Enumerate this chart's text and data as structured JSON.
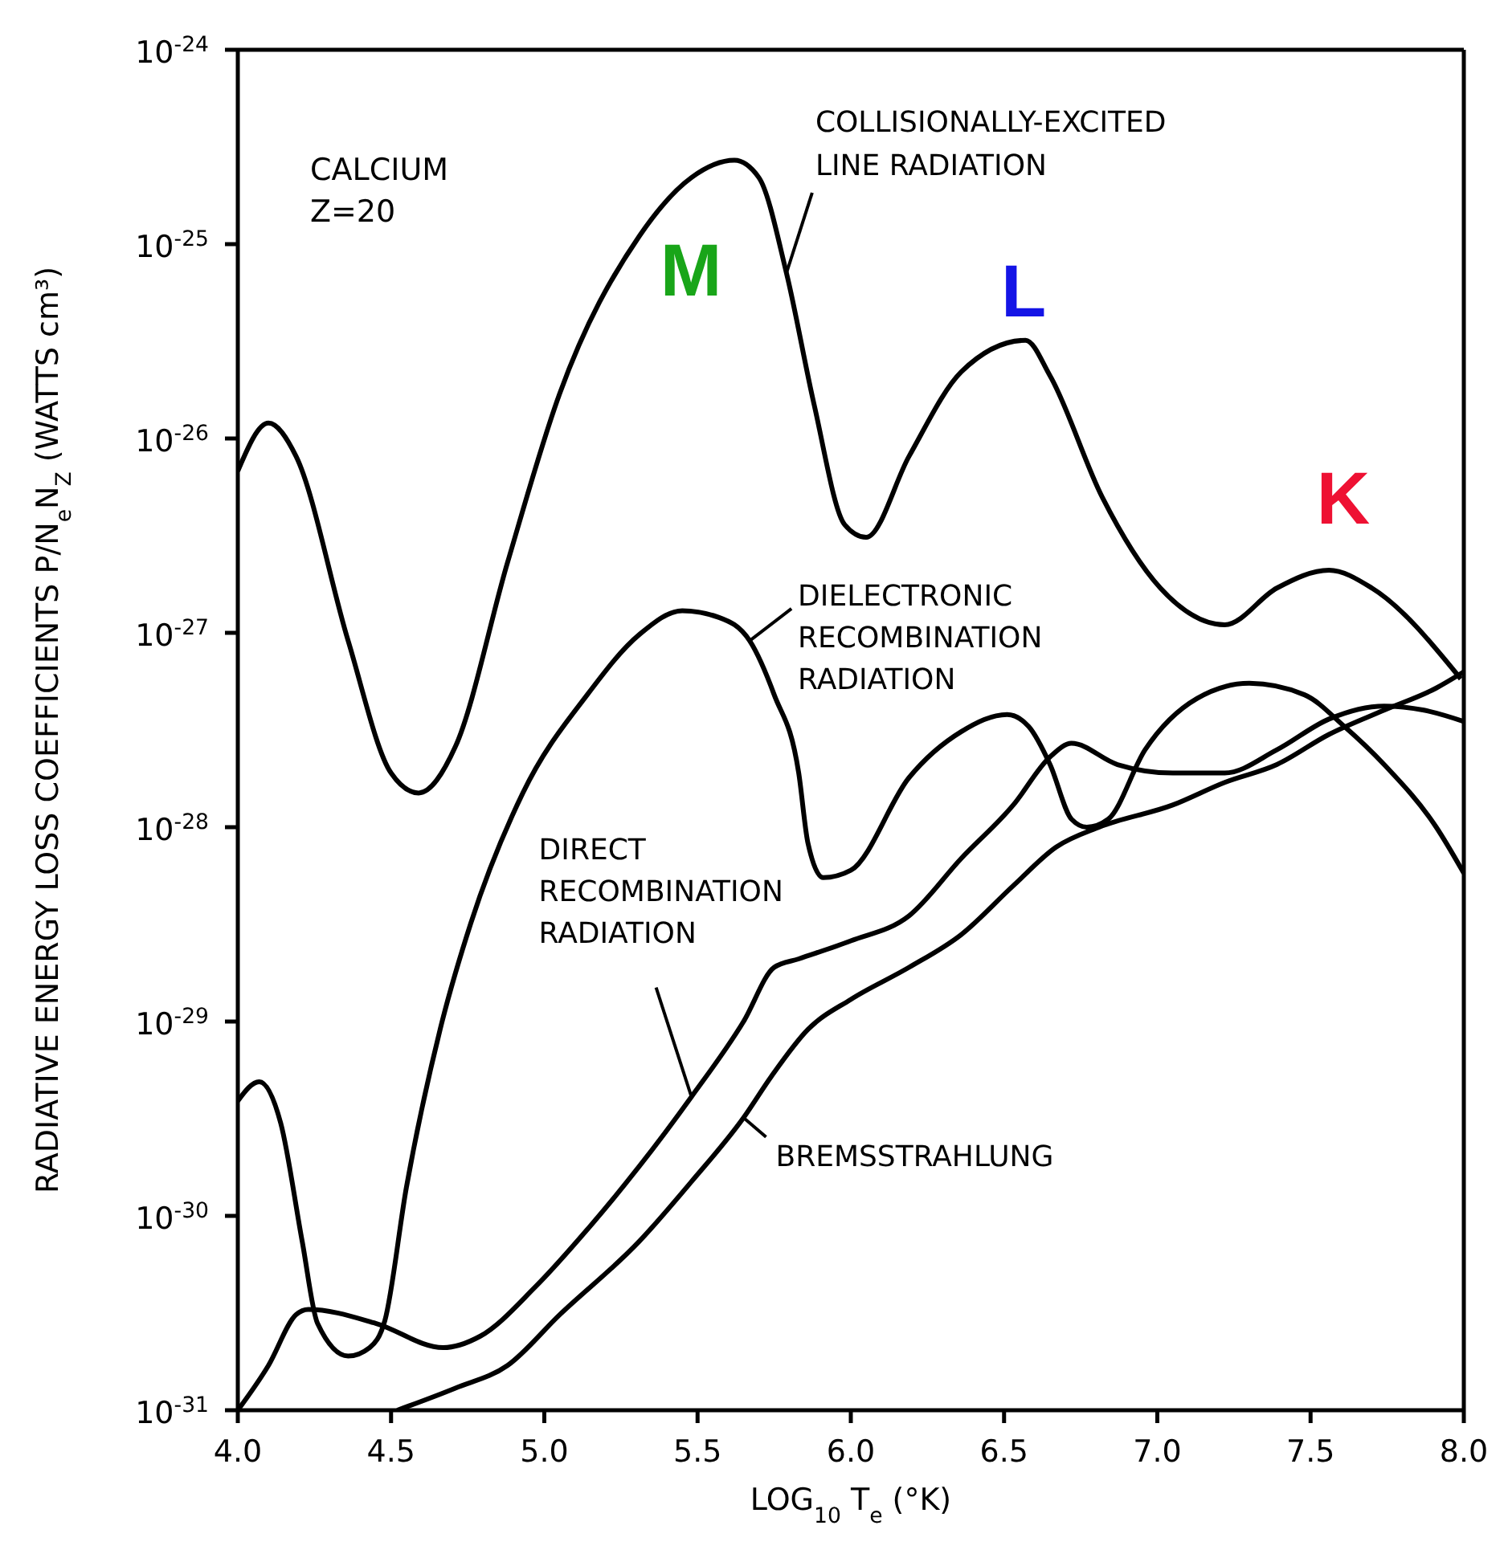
{
  "chart_data": {
    "type": "line",
    "xlabel": "LOG$_{10}$ T$_{e}$ (°K)",
    "ylabel": "RADIATIVE ENERGY LOSS COEFFICIENTS P/N$_{e}$N$_{Z}$ (WATTS cm³)",
    "log": "y",
    "grid": false,
    "marker": "none",
    "line_style": "solid",
    "xlim": [
      4,
      8
    ],
    "xticks": [
      {
        "value": 4,
        "label": "4.0"
      },
      {
        "value": 4.5,
        "label": "4.5"
      },
      {
        "value": 5,
        "label": "5.0"
      },
      {
        "value": 5.5,
        "label": "5.5"
      },
      {
        "value": 6,
        "label": "6.0"
      },
      {
        "value": 6.5,
        "label": "6.5"
      },
      {
        "value": 7,
        "label": "7.0"
      },
      {
        "value": 7.5,
        "label": "7.5"
      },
      {
        "value": 8,
        "label": "8.0"
      }
    ],
    "ylim": [
      1e-31,
      1e-24
    ],
    "yticks": [
      {
        "value": 1e-31,
        "label": "10$^{-31}$"
      },
      {
        "value": 1e-30,
        "label": "10$^{-30}$"
      },
      {
        "value": 1e-29,
        "label": "10$^{-29}$"
      },
      {
        "value": 1e-28,
        "label": "10$^{-28}$"
      },
      {
        "value": 1e-27,
        "label": "10$^{-27}$"
      },
      {
        "value": 1e-26,
        "label": "10$^{-26}$"
      },
      {
        "value": 1e-25,
        "label": "10$^{-25}$"
      },
      {
        "value": 1e-24,
        "label": "10$^{-24}$"
      }
    ],
    "annotations": [
      "CALCIUM",
      "Z=20",
      "M",
      "L",
      "K"
    ],
    "series": [
      {
        "name": "COLLISIONALLY-EXCITED LINE RADIATION",
        "color": "#000000",
        "x": [
          4.0,
          4.1,
          4.19,
          4.36,
          4.5,
          4.59,
          4.71,
          4.88,
          5.05,
          5.31,
          5.48,
          5.62,
          5.7,
          5.79,
          5.88,
          5.98,
          6.05,
          6.19,
          6.36,
          6.57,
          6.65,
          6.82,
          7.01,
          7.22,
          7.39,
          7.56,
          7.7,
          7.99
        ],
        "values": [
          6.8e-27,
          1.2e-26,
          8.1e-27,
          9.1e-28,
          1.9e-28,
          1.5e-28,
          2.6e-28,
          2.3e-27,
          1.7e-26,
          1.1e-25,
          2.2e-25,
          2.7e-25,
          2.2e-25,
          7.1e-26,
          1.5e-26,
          3.6e-27,
          3.1e-27,
          8.1e-27,
          2.2e-26,
          3.2e-26,
          2.1e-26,
          5e-27,
          1.7e-27,
          1.1e-27,
          1.7e-27,
          2.1e-27,
          1.7e-27,
          5.8e-28
        ]
      },
      {
        "name": "DIELECTRONIC RECOMBINATION RADIATION",
        "color": "#000000",
        "x": [
          4.0,
          4.07,
          4.14,
          4.21,
          4.26,
          4.36,
          4.43,
          4.48,
          4.55,
          4.66,
          4.76,
          4.93,
          5.14,
          5.31,
          5.45,
          5.57,
          5.67,
          5.75,
          5.83,
          5.86,
          5.91,
          6.0,
          6.19,
          6.36,
          6.51,
          6.58,
          6.65,
          6.72,
          6.77,
          6.84,
          6.96,
          7.13,
          7.3,
          7.48,
          7.61,
          7.74,
          7.91,
          8.0
        ],
        "values": [
          3.9e-30,
          4.9e-30,
          3e-30,
          7.4e-31,
          2.8e-31,
          1.9e-31,
          2.1e-31,
          2.9e-31,
          1.4e-30,
          9.1e-30,
          3.2e-29,
          1.5e-28,
          4.8e-28,
          9.8e-28,
          1.3e-27,
          1.2e-27,
          9.1e-28,
          4.8e-28,
          1.9e-28,
          8.3e-29,
          5.5e-29,
          6e-29,
          1.8e-28,
          3.1e-28,
          3.8e-28,
          3.3e-28,
          2.1e-28,
          1.1e-28,
          1e-28,
          1.1e-28,
          2.5e-28,
          4.6e-28,
          5.5e-28,
          4.8e-28,
          3.3e-28,
          2.1e-28,
          1e-28,
          5.8e-29
        ]
      },
      {
        "name": "DIRECT RECOMBINATION RADIATION",
        "color": "#000000",
        "x": [
          4.0,
          4.1,
          4.19,
          4.23,
          4.45,
          4.67,
          4.79,
          4.97,
          5.14,
          5.31,
          5.48,
          5.65,
          5.75,
          5.83,
          6.0,
          6.19,
          6.36,
          6.53,
          6.65,
          6.72,
          6.87,
          7.05,
          7.22,
          7.39,
          7.56,
          7.74,
          7.87,
          8.0
        ],
        "values": [
          1e-31,
          1.7e-31,
          3.1e-31,
          3.3e-31,
          2.8e-31,
          2.1e-31,
          2.4e-31,
          4.3e-31,
          8.5e-31,
          1.8e-30,
          4.1e-30,
          1e-29,
          1.9e-29,
          2.1e-29,
          2.6e-29,
          3.5e-29,
          6.9e-29,
          1.3e-28,
          2.3e-28,
          2.7e-28,
          2.1e-28,
          1.9e-28,
          1.9e-28,
          2.5e-28,
          3.6e-28,
          4.2e-28,
          4e-28,
          3.5e-28
        ]
      },
      {
        "name": "BREMSSTRAHLUNG",
        "color": "#000000",
        "x": [
          4.52,
          4.71,
          4.88,
          5.05,
          5.31,
          5.48,
          5.65,
          5.74,
          5.86,
          6.0,
          6.19,
          6.36,
          6.53,
          6.67,
          6.81,
          7.05,
          7.22,
          7.39,
          7.56,
          7.74,
          7.91,
          8.0
        ],
        "values": [
          1e-31,
          1.3e-31,
          1.7e-31,
          3.1e-31,
          7.4e-31,
          1.5e-30,
          3.2e-30,
          5.2e-30,
          9.1e-30,
          1.3e-29,
          1.9e-29,
          2.8e-29,
          5e-29,
          7.9e-29,
          1e-28,
          1.3e-28,
          1.7e-28,
          2.1e-28,
          3e-28,
          4e-28,
          5.2e-28,
          6.3e-28
        ]
      }
    ]
  }
}
